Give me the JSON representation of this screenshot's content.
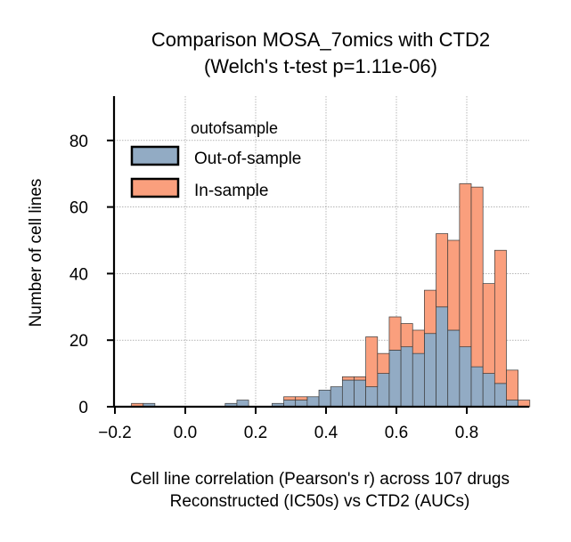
{
  "chart_data": {
    "type": "bar",
    "title": "Comparison MOSA_7omics with CTD2",
    "subtitle": "(Welch's t-test p=1.11e-06)",
    "xlabel_line1": "Cell line correlation (Pearson's r) across 107 drugs",
    "xlabel_line2": "Reconstructed (IC50s) vs CTD2 (AUCs)",
    "ylabel": "Number of cell lines",
    "xlim": [
      -0.2,
      0.97
    ],
    "ylim": [
      0,
      92
    ],
    "xticks": [
      -0.2,
      0.0,
      0.2,
      0.4,
      0.6,
      0.8
    ],
    "xtick_labels": [
      "−0.2",
      "0.0",
      "0.2",
      "0.4",
      "0.6",
      "0.8"
    ],
    "yticks": [
      0,
      20,
      40,
      60,
      80
    ],
    "ytick_labels": [
      "0",
      "20",
      "40",
      "60",
      "80"
    ],
    "grid": true,
    "bin_start": -0.153,
    "bin_width": 0.0333,
    "legend": {
      "title": "outofsample",
      "placement": "upper-left",
      "entries": [
        "Out-of-sample",
        "In-sample"
      ]
    },
    "series": [
      {
        "name": "Out-of-sample",
        "color": "#92abc4",
        "values": [
          0,
          1,
          0,
          0,
          0,
          0,
          0,
          0,
          1,
          2,
          0,
          0,
          1,
          2,
          2,
          3,
          5,
          6,
          8,
          8,
          6,
          10,
          17,
          18,
          16,
          22,
          30,
          23,
          18,
          12,
          10,
          7,
          2,
          0
        ]
      },
      {
        "name": "In-sample",
        "color": "#fa9f7d",
        "values": [
          1,
          0,
          0,
          0,
          0,
          0,
          0,
          0,
          0,
          0,
          0,
          0,
          0,
          1,
          1,
          0,
          0,
          0,
          1,
          1,
          15,
          6,
          10,
          7,
          7,
          13,
          22,
          27,
          49,
          54,
          27,
          40,
          9,
          2
        ]
      }
    ]
  }
}
